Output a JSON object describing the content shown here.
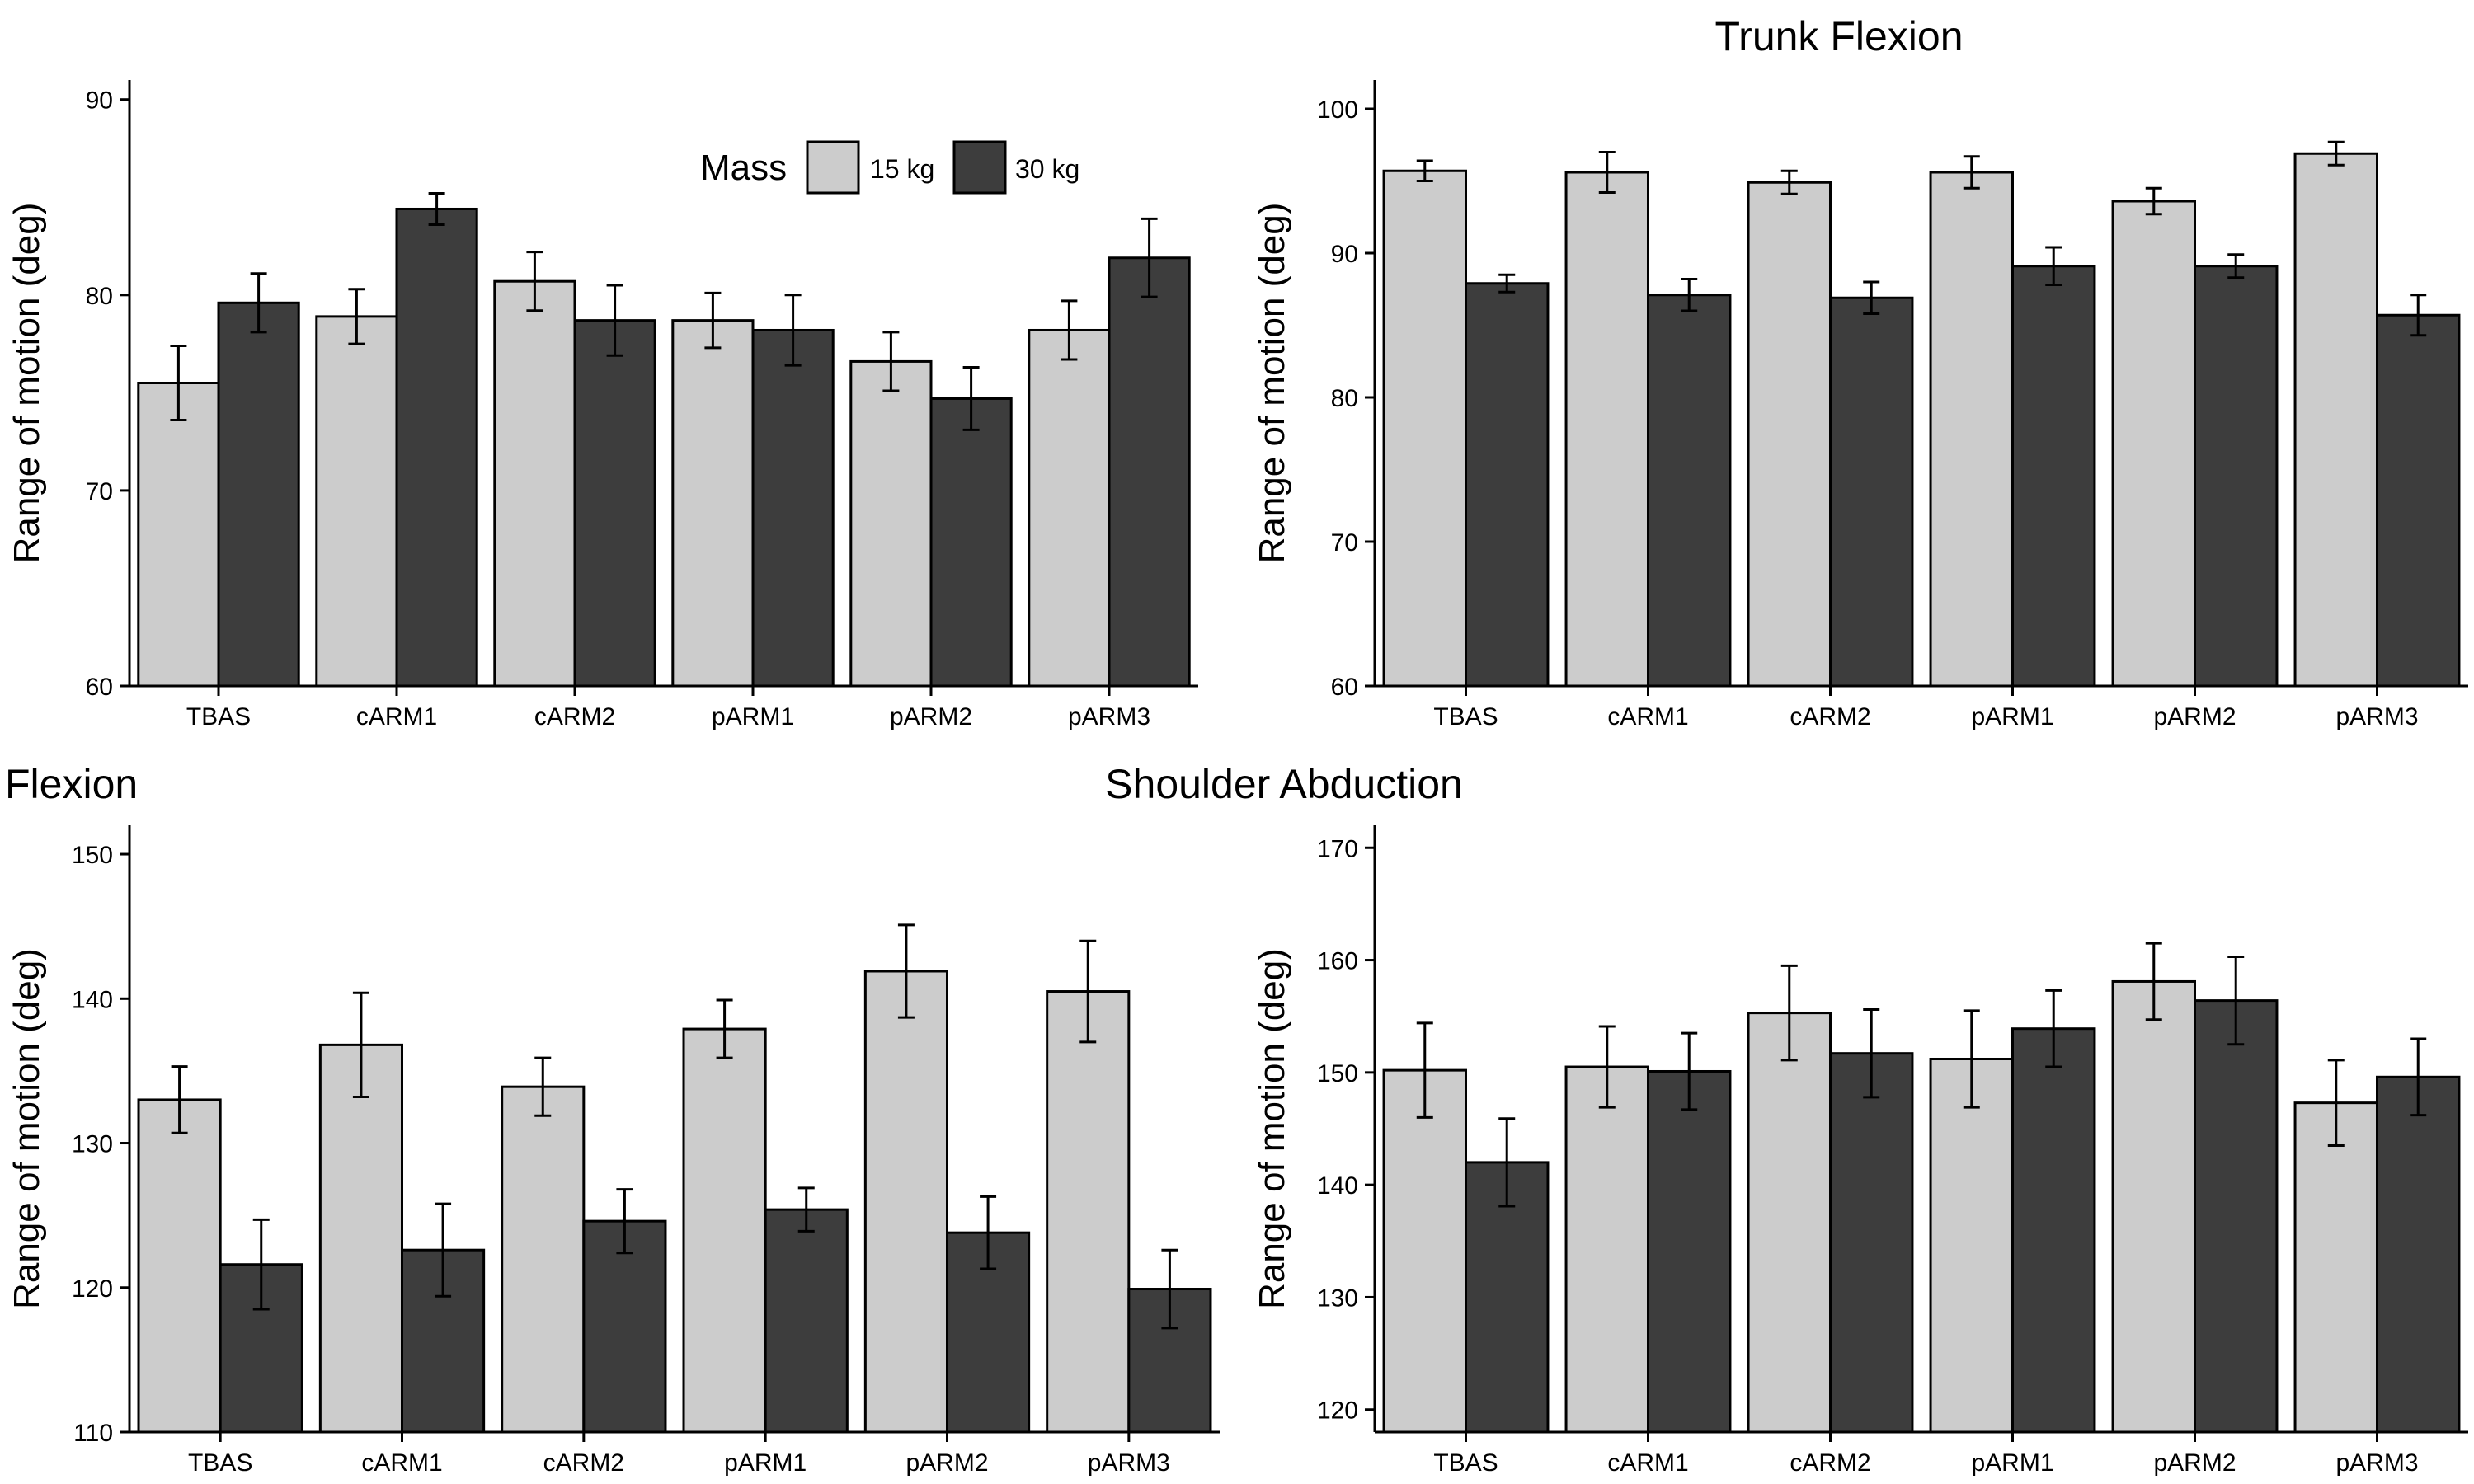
{
  "colors": {
    "light": "#cccccc",
    "dark": "#3d3d3d",
    "stroke": "#000000"
  },
  "titles": {
    "top_right": "Trunk Flexion",
    "bottom_left_fragment": "Flexion",
    "bottom_center": "Shoulder Abduction"
  },
  "legend": {
    "title": "Mass",
    "entries": [
      {
        "label": "15 kg",
        "color": "#cccccc"
      },
      {
        "label": "30 kg",
        "color": "#3d3d3d"
      }
    ]
  },
  "chart_data": [
    {
      "type": "bar",
      "title": "",
      "ylabel": "Range of motion (deg)",
      "xlabel": "",
      "categories": [
        "TBAS",
        "cARM1",
        "cARM2",
        "pARM1",
        "pARM2",
        "pARM3"
      ],
      "ylim": [
        60,
        91
      ],
      "yticks": [
        60,
        70,
        80,
        90
      ],
      "series": [
        {
          "name": "15 kg",
          "values": [
            75.5,
            78.9,
            80.7,
            78.7,
            76.6,
            78.2
          ],
          "errors": [
            1.9,
            1.4,
            1.5,
            1.4,
            1.5,
            1.5
          ]
        },
        {
          "name": "30 kg",
          "values": [
            79.6,
            84.4,
            78.7,
            78.2,
            74.7,
            81.9
          ],
          "errors": [
            1.5,
            0.8,
            1.8,
            1.8,
            1.6,
            2.0
          ]
        }
      ]
    },
    {
      "type": "bar",
      "title": "Trunk Flexion",
      "ylabel": "Range of motion (deg)",
      "xlabel": "",
      "categories": [
        "TBAS",
        "cARM1",
        "cARM2",
        "pARM1",
        "pARM2",
        "pARM3"
      ],
      "ylim": [
        60,
        102
      ],
      "yticks": [
        60,
        70,
        80,
        90,
        100
      ],
      "series": [
        {
          "name": "15 kg",
          "values": [
            95.7,
            95.6,
            94.9,
            95.6,
            93.6,
            96.9
          ],
          "errors": [
            0.7,
            1.4,
            0.8,
            1.1,
            0.9,
            0.8
          ]
        },
        {
          "name": "30 kg",
          "values": [
            87.9,
            87.1,
            86.9,
            89.1,
            89.1,
            85.7
          ],
          "errors": [
            0.6,
            1.1,
            1.1,
            1.3,
            0.8,
            1.4
          ]
        }
      ]
    },
    {
      "type": "bar",
      "title": "",
      "ylabel": "Range of motion (deg)",
      "xlabel": "",
      "categories": [
        "TBAS",
        "cARM1",
        "cARM2",
        "pARM1",
        "pARM2",
        "pARM3"
      ],
      "ylim": [
        110,
        152
      ],
      "yticks": [
        110,
        120,
        130,
        140,
        150
      ],
      "series": [
        {
          "name": "15 kg",
          "values": [
            133.0,
            136.8,
            133.9,
            137.9,
            141.9,
            140.5
          ],
          "errors": [
            2.3,
            3.6,
            2.0,
            2.0,
            3.2,
            3.5
          ]
        },
        {
          "name": "30 kg",
          "values": [
            121.6,
            122.6,
            124.6,
            125.4,
            123.8,
            119.9
          ],
          "errors": [
            3.1,
            3.2,
            2.2,
            1.5,
            2.5,
            2.7
          ]
        }
      ]
    },
    {
      "type": "bar",
      "title": "",
      "ylabel": "Range of motion (deg)",
      "xlabel": "",
      "categories": [
        "TBAS",
        "cARM1",
        "cARM2",
        "pARM1",
        "pARM2",
        "pARM3"
      ],
      "ylim": [
        118,
        172
      ],
      "yticks": [
        120,
        130,
        140,
        150,
        160,
        170
      ],
      "series": [
        {
          "name": "15 kg",
          "values": [
            150.2,
            150.5,
            155.3,
            151.2,
            158.1,
            147.3
          ],
          "errors": [
            4.2,
            3.6,
            4.2,
            4.3,
            3.4,
            3.8
          ]
        },
        {
          "name": "30 kg",
          "values": [
            142.0,
            150.1,
            151.7,
            153.9,
            156.4,
            149.6
          ],
          "errors": [
            3.9,
            3.4,
            3.9,
            3.4,
            3.9,
            3.4
          ]
        }
      ]
    }
  ]
}
